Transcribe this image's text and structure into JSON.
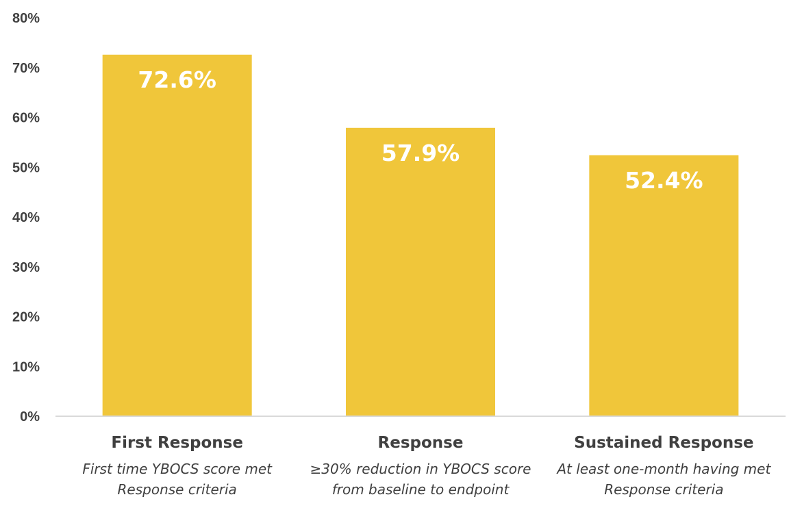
{
  "chart_data": {
    "type": "bar",
    "categories": [
      "First Response",
      "Response",
      "Sustained Response"
    ],
    "descriptions": [
      [
        "First time YBOCS score met",
        "Response criteria"
      ],
      [
        "≥30% reduction in YBOCS score",
        "from baseline to endpoint"
      ],
      [
        "At least one-month having met",
        "Response criteria"
      ]
    ],
    "values": [
      72.6,
      57.9,
      52.4
    ],
    "data_labels": [
      "72.6%",
      "57.9%",
      "52.4%"
    ],
    "ylim": [
      0,
      80
    ],
    "yticks": [
      0,
      10,
      20,
      30,
      40,
      50,
      60,
      70,
      80
    ],
    "ytick_labels": [
      "0%",
      "10%",
      "20%",
      "30%",
      "40%",
      "50%",
      "60%",
      "70%",
      "80%"
    ],
    "grid": false,
    "bar_color": "#F0C63A",
    "label_color": "#FFFFFF",
    "text_color": "#404040",
    "axis_color": "#D9D9D9"
  }
}
